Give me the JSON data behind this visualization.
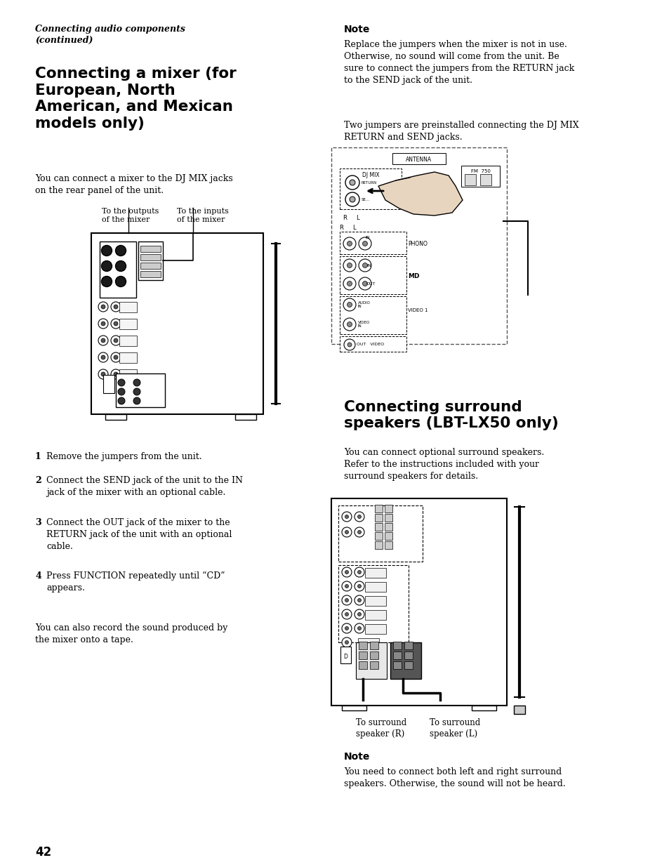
{
  "bg_color": "#ffffff",
  "page_number": "42",
  "header_italic_bold": "Connecting audio components\n(continued)",
  "section1_title": "Connecting a mixer (for\nEuropean, North\nAmerican, and Mexican\nmodels only)",
  "section1_body1": "You can connect a mixer to the DJ MIX jacks\non the rear panel of the unit.",
  "diagram1_label_left": "To the outputs\nof the mixer",
  "diagram1_label_right": "To the inputs\nof the mixer",
  "note_title": "Note",
  "note_body": "Replace the jumpers when the mixer is not in use.\nOtherwise, no sound will come from the unit. Be\nsure to connect the jumpers from the RETURN jack\nto the SEND jack of the unit.",
  "note_body2": "Two jumpers are preinstalled connecting the DJ MIX\nRETURN and SEND jacks.",
  "steps": [
    {
      "n": "1",
      "text": "Remove the jumpers from the unit."
    },
    {
      "n": "2",
      "text": "Connect the SEND jack of the unit to the IN\njack of the mixer with an optional cable."
    },
    {
      "n": "3",
      "text": "Connect the OUT jack of the mixer to the\nRETURN jack of the unit with an optional\ncable."
    },
    {
      "n": "4",
      "text": "Press FUNCTION repeatedly until “CD”\nappears."
    }
  ],
  "extra_body": "You can also record the sound produced by\nthe mixer onto a tape.",
  "section2_title": "Connecting surround\nspeakers (LBT-LX50 only)",
  "section2_body": "You can connect optional surround speakers.\nRefer to the instructions included with your\nsurround speakers for details.",
  "diagram2_label_left": "To surround\nspeaker (R)",
  "diagram2_label_right": "To surround\nspeaker (L)",
  "note2_title": "Note",
  "note2_body": "You need to connect both left and right surround\nspeakers. Otherwise, the sound will not be heard."
}
